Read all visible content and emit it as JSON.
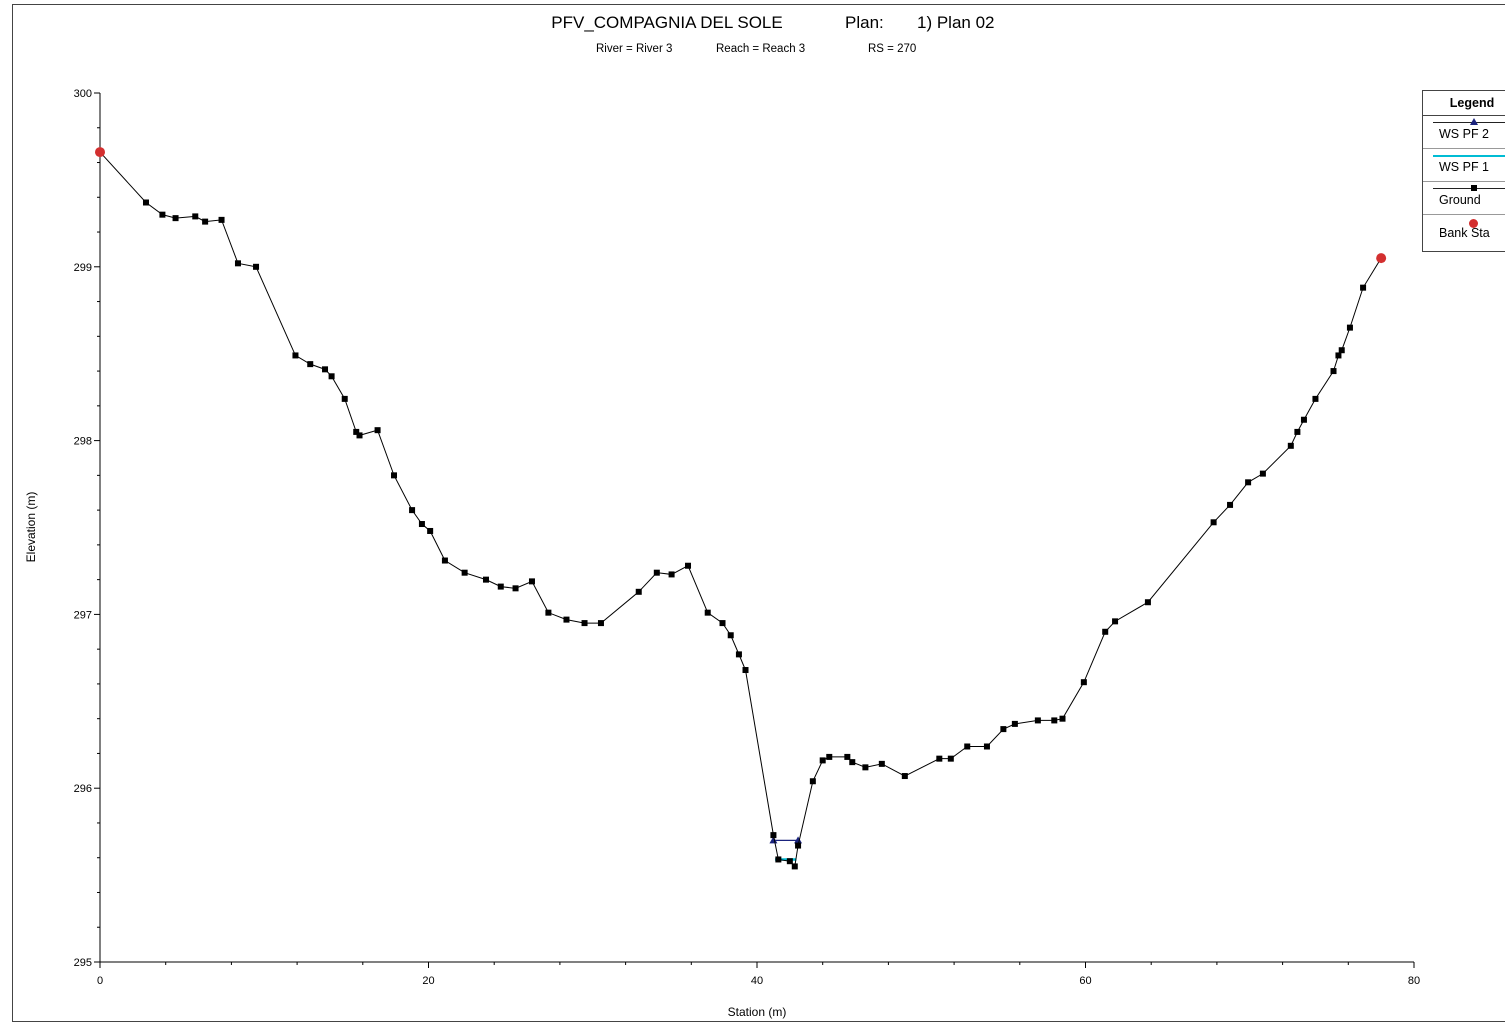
{
  "chart_data": {
    "type": "line",
    "title": "PFV_COMPAGNIA DEL SOLE",
    "plan_label": "Plan:",
    "plan_value": "1) Plan 02",
    "subtitle": {
      "river": "River = River 3",
      "reach": "Reach = Reach 3",
      "rs": "RS = 270"
    },
    "xlabel": "Station (m)",
    "ylabel": "Elevation (m)",
    "xlim": [
      0,
      80
    ],
    "ylim": [
      295,
      300
    ],
    "x_ticks": [
      0,
      20,
      40,
      60,
      80
    ],
    "y_ticks": [
      295,
      296,
      297,
      298,
      299,
      300
    ],
    "x_tick_labels": [
      "0",
      "20",
      "40",
      "60",
      "80"
    ],
    "y_tick_labels": [
      "295",
      "296",
      "297",
      "298",
      "299",
      "300"
    ],
    "grid": false,
    "legend_position": "top-right",
    "legend_title": "Legend",
    "series": [
      {
        "name": "WS PF 2",
        "color": "#1a237e",
        "marker": "triangle",
        "x": [
          41.0,
          42.5
        ],
        "y": [
          295.7,
          295.7
        ]
      },
      {
        "name": "WS PF 1",
        "color": "#00bcd4",
        "marker": "none",
        "x": [
          41.1,
          42.4
        ],
        "y": [
          295.59,
          295.59
        ]
      },
      {
        "name": "Ground",
        "color": "#000000",
        "marker": "square",
        "x": [
          0.0,
          2.8,
          3.8,
          4.6,
          5.8,
          6.4,
          7.4,
          8.4,
          9.5,
          11.9,
          12.8,
          13.7,
          14.1,
          14.9,
          15.6,
          15.8,
          16.9,
          17.9,
          19.0,
          19.6,
          20.1,
          21.0,
          22.2,
          23.5,
          24.4,
          25.3,
          26.3,
          27.3,
          28.4,
          29.5,
          30.5,
          32.8,
          33.9,
          34.8,
          35.8,
          37.0,
          37.9,
          38.4,
          38.9,
          39.3,
          41.0,
          41.3,
          42.0,
          42.3,
          42.5,
          43.4,
          44.0,
          44.4,
          45.5,
          45.8,
          46.6,
          47.6,
          49.0,
          51.1,
          51.8,
          52.8,
          54.0,
          55.0,
          55.7,
          57.1,
          58.1,
          58.6,
          59.9,
          61.2,
          61.8,
          63.8,
          67.8,
          68.8,
          69.9,
          70.8,
          72.5,
          72.9,
          73.3,
          74.0,
          75.1,
          75.4,
          75.6,
          76.1,
          76.9,
          78.0
        ],
        "y": [
          299.66,
          299.37,
          299.3,
          299.28,
          299.29,
          299.26,
          299.27,
          299.02,
          299.0,
          298.49,
          298.44,
          298.41,
          298.37,
          298.24,
          298.05,
          298.03,
          298.06,
          297.8,
          297.6,
          297.52,
          297.48,
          297.31,
          297.24,
          297.2,
          297.16,
          297.15,
          297.19,
          297.01,
          296.97,
          296.95,
          296.95,
          297.13,
          297.24,
          297.23,
          297.28,
          297.01,
          296.95,
          296.88,
          296.77,
          296.68,
          295.73,
          295.59,
          295.58,
          295.55,
          295.67,
          296.04,
          296.16,
          296.18,
          296.18,
          296.15,
          296.12,
          296.14,
          296.07,
          296.17,
          296.17,
          296.24,
          296.24,
          296.34,
          296.37,
          296.39,
          296.39,
          296.4,
          296.61,
          296.9,
          296.96,
          297.07,
          297.53,
          297.63,
          297.76,
          297.81,
          297.97,
          298.05,
          298.12,
          298.24,
          298.4,
          298.49,
          298.52,
          298.65,
          298.88,
          299.05
        ]
      },
      {
        "name": "Bank Sta",
        "color": "#d32f2f",
        "marker": "circle",
        "x": [
          0.0,
          78.0
        ],
        "y": [
          299.66,
          299.05
        ]
      }
    ]
  }
}
